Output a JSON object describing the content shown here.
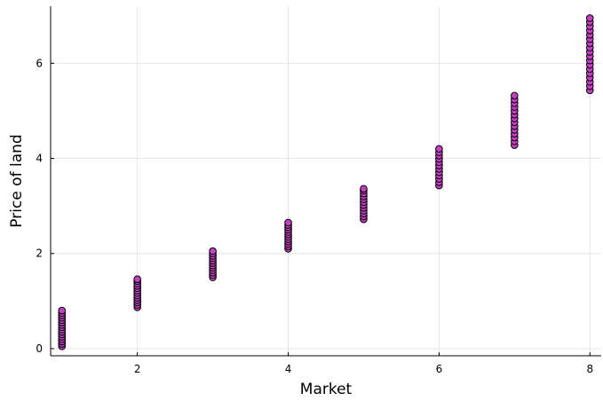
{
  "chart_data": {
    "type": "scatter",
    "title": "",
    "xlabel": "Market",
    "ylabel": "Price of land",
    "xlim": [
      0.85,
      8.15
    ],
    "ylim": [
      -0.15,
      7.2
    ],
    "xticks": [
      2,
      4,
      6,
      8
    ],
    "yticks": [
      0,
      2,
      4,
      6
    ],
    "grid": true,
    "legend": "none",
    "marker_color": "#c43fc4",
    "marker_edge": "#000000",
    "groups": [
      {
        "x": 1,
        "y": [
          0.05,
          0.1,
          0.15,
          0.2,
          0.25,
          0.3,
          0.35,
          0.4,
          0.45,
          0.5,
          0.55,
          0.6,
          0.65,
          0.7,
          0.75,
          0.8
        ]
      },
      {
        "x": 2,
        "y": [
          0.87,
          0.92,
          0.97,
          1.02,
          1.07,
          1.12,
          1.17,
          1.22,
          1.27,
          1.32,
          1.37,
          1.42,
          1.46
        ]
      },
      {
        "x": 3,
        "y": [
          1.5,
          1.55,
          1.6,
          1.65,
          1.7,
          1.75,
          1.8,
          1.85,
          1.9,
          1.95,
          2.0,
          2.05
        ]
      },
      {
        "x": 4,
        "y": [
          2.1,
          2.15,
          2.2,
          2.25,
          2.3,
          2.35,
          2.4,
          2.45,
          2.5,
          2.55,
          2.6,
          2.65
        ]
      },
      {
        "x": 5,
        "y": [
          2.72,
          2.78,
          2.84,
          2.9,
          2.96,
          3.02,
          3.08,
          3.14,
          3.2,
          3.26,
          3.32,
          3.36
        ]
      },
      {
        "x": 6,
        "y": [
          3.43,
          3.5,
          3.57,
          3.64,
          3.71,
          3.78,
          3.85,
          3.92,
          3.99,
          4.06,
          4.13,
          4.2
        ]
      },
      {
        "x": 7,
        "y": [
          4.28,
          4.36,
          4.44,
          4.52,
          4.6,
          4.68,
          4.76,
          4.84,
          4.92,
          5.0,
          5.08,
          5.16,
          5.24,
          5.32
        ]
      },
      {
        "x": 8,
        "y": [
          5.43,
          5.52,
          5.61,
          5.7,
          5.79,
          5.88,
          5.97,
          6.06,
          6.15,
          6.24,
          6.33,
          6.42,
          6.51,
          6.6,
          6.69,
          6.78,
          6.87,
          6.95
        ]
      }
    ]
  }
}
